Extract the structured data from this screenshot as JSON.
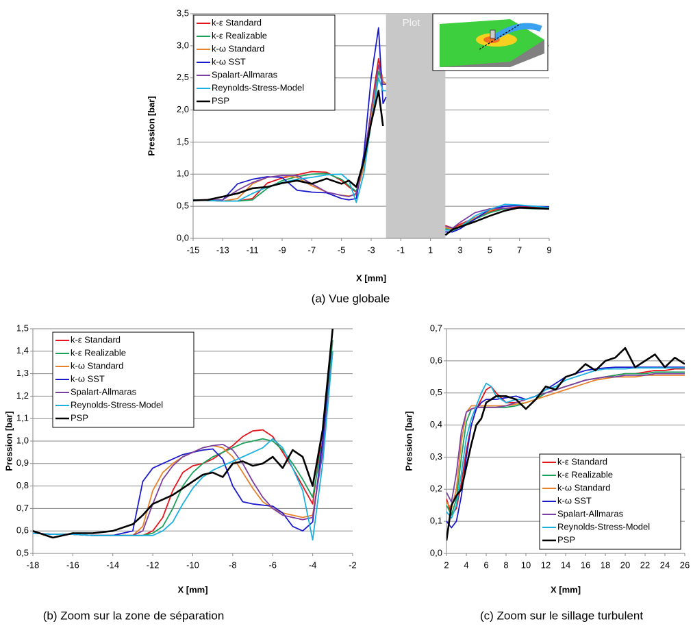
{
  "chart_data": [
    {
      "type": "line",
      "caption": "(a)  Vue globale",
      "xlabel": "X [mm]",
      "ylabel": "Pression [bar]",
      "annotation": "Plot",
      "span": [
        -2,
        2
      ],
      "legend": "upper left",
      "grid": true,
      "xlim": [
        -15,
        9
      ],
      "xticks": [
        -15,
        -13,
        -11,
        -9,
        -7,
        -5,
        -3,
        -1,
        1,
        3,
        5,
        7,
        9
      ],
      "ylim": [
        0,
        3.5
      ],
      "yticks": [
        {
          "value": 0,
          "label": "0,0"
        },
        {
          "value": 0.5,
          "label": "0,5"
        },
        {
          "value": 1,
          "label": "1,0"
        },
        {
          "value": 1.5,
          "label": "1,5"
        },
        {
          "value": 2,
          "label": "2,0"
        },
        {
          "value": 2.5,
          "label": "2,5"
        },
        {
          "value": 3,
          "label": "3,0"
        },
        {
          "value": 3.5,
          "label": "3,5"
        }
      ],
      "x": [
        -15,
        -14,
        -13,
        -12,
        -11,
        -10,
        -9,
        -8,
        -7,
        -6,
        -5,
        -4.5,
        -4,
        -3.5,
        -3,
        -2.5,
        -2.2,
        -2,
        0,
        2,
        2.5,
        3,
        4,
        5,
        6,
        7,
        8,
        9
      ],
      "series": [
        {
          "name": "k-ε Standard",
          "color": "#e3141b",
          "values": [
            0.6,
            0.59,
            0.58,
            0.58,
            0.62,
            0.86,
            0.94,
            0.99,
            1.04,
            1.03,
            0.9,
            0.8,
            0.72,
            1.2,
            2.0,
            2.8,
            2.45,
            2.4,
            null,
            0.2,
            0.16,
            0.22,
            0.32,
            0.42,
            0.47,
            0.49,
            0.49,
            0.49
          ]
        },
        {
          "name": "k-ε Realizable",
          "color": "#1aa05a",
          "values": [
            0.6,
            0.59,
            0.58,
            0.58,
            0.6,
            0.78,
            0.9,
            0.96,
            1.0,
            1.01,
            0.92,
            0.82,
            0.73,
            1.15,
            1.9,
            2.6,
            2.4,
            2.4,
            null,
            0.15,
            0.12,
            0.18,
            0.3,
            0.4,
            0.46,
            0.47,
            0.46,
            0.46
          ]
        },
        {
          "name": "k-ω Standard",
          "color": "#e8822a",
          "values": [
            0.6,
            0.59,
            0.58,
            0.62,
            0.85,
            0.95,
            0.98,
            0.95,
            0.82,
            0.72,
            0.67,
            0.66,
            0.68,
            1.1,
            1.9,
            2.7,
            2.45,
            2.4,
            null,
            0.17,
            0.14,
            0.2,
            0.32,
            0.43,
            0.5,
            0.51,
            0.5,
            0.49
          ]
        },
        {
          "name": "k-ω SST",
          "color": "#1a1acc",
          "values": [
            0.6,
            0.59,
            0.6,
            0.85,
            0.92,
            0.96,
            0.95,
            0.75,
            0.72,
            0.71,
            0.62,
            0.6,
            0.62,
            1.3,
            2.5,
            3.28,
            2.1,
            2.2,
            null,
            0.1,
            0.1,
            0.15,
            0.3,
            0.45,
            0.5,
            0.51,
            0.5,
            0.49
          ]
        },
        {
          "name": "Spalart-Allmaras",
          "color": "#7a3fa0",
          "values": [
            0.6,
            0.59,
            0.6,
            0.75,
            0.87,
            0.95,
            0.98,
            0.98,
            0.85,
            0.72,
            0.67,
            0.65,
            0.7,
            1.2,
            2.0,
            2.7,
            2.4,
            2.4,
            null,
            0.19,
            0.16,
            0.25,
            0.4,
            0.46,
            0.47,
            0.47,
            0.47,
            0.47
          ]
        },
        {
          "name": "Reynolds-Stress-Model",
          "color": "#1ab0e0",
          "values": [
            0.6,
            0.59,
            0.58,
            0.58,
            0.7,
            0.8,
            0.87,
            0.92,
            0.95,
            0.99,
            1.0,
            0.9,
            0.56,
            1.0,
            1.8,
            2.5,
            2.3,
            2.3,
            null,
            0.13,
            0.13,
            0.18,
            0.35,
            0.45,
            0.53,
            0.52,
            0.5,
            0.48
          ]
        },
        {
          "name": "PSP",
          "color": "#000000",
          "values": [
            0.59,
            0.6,
            0.65,
            0.7,
            0.78,
            0.8,
            0.86,
            0.9,
            0.85,
            0.93,
            0.85,
            0.9,
            0.8,
            1.2,
            1.8,
            2.3,
            1.75,
            null,
            null,
            0.05,
            0.14,
            0.18,
            0.26,
            0.35,
            0.43,
            0.48,
            0.47,
            0.46
          ]
        }
      ]
    },
    {
      "type": "line",
      "caption": "(b)  Zoom sur la zone de séparation",
      "xlabel": "X [mm]",
      "ylabel": "Pression [bar]",
      "legend": "upper left",
      "grid": true,
      "xlim": [
        -18,
        -2
      ],
      "xticks": [
        -18,
        -16,
        -14,
        -12,
        -10,
        -8,
        -6,
        -4,
        -2
      ],
      "ylim": [
        0.5,
        1.5
      ],
      "yticks": [
        {
          "value": 0.5,
          "label": "0,5"
        },
        {
          "value": 0.6,
          "label": "0,6"
        },
        {
          "value": 0.7,
          "label": "0,7"
        },
        {
          "value": 0.8,
          "label": "0,8"
        },
        {
          "value": 0.9,
          "label": "0,9"
        },
        {
          "value": 1.0,
          "label": "1,0"
        },
        {
          "value": 1.1,
          "label": "1,1"
        },
        {
          "value": 1.2,
          "label": "1,2"
        },
        {
          "value": 1.3,
          "label": "1,3"
        },
        {
          "value": 1.4,
          "label": "1,4"
        },
        {
          "value": 1.5,
          "label": "1,5"
        }
      ],
      "x": [
        -18,
        -17,
        -16,
        -15,
        -14,
        -13,
        -12.5,
        -12,
        -11.5,
        -11,
        -10.5,
        -10,
        -9.5,
        -9,
        -8.5,
        -8,
        -7.5,
        -7,
        -6.5,
        -6,
        -5.5,
        -5,
        -4.5,
        -4,
        -3.5,
        -3
      ],
      "series": [
        {
          "name": "k-ε Standard",
          "color": "#e3141b",
          "values": [
            0.59,
            0.585,
            0.585,
            0.58,
            0.58,
            0.58,
            0.58,
            0.6,
            0.66,
            0.78,
            0.86,
            0.89,
            0.9,
            0.92,
            0.95,
            0.98,
            1.02,
            1.045,
            1.05,
            1.02,
            0.95,
            0.88,
            0.8,
            0.72,
            1.05,
            1.5
          ]
        },
        {
          "name": "k-ε Realizable",
          "color": "#1aa05a",
          "values": [
            0.59,
            0.585,
            0.585,
            0.58,
            0.58,
            0.58,
            0.58,
            0.59,
            0.62,
            0.7,
            0.8,
            0.86,
            0.9,
            0.93,
            0.95,
            0.97,
            0.99,
            1.0,
            1.01,
            1.0,
            0.96,
            0.9,
            0.83,
            0.75,
            1.0,
            1.45
          ]
        },
        {
          "name": "k-ω Standard",
          "color": "#e8822a",
          "values": [
            0.59,
            0.585,
            0.585,
            0.58,
            0.58,
            0.58,
            0.62,
            0.78,
            0.86,
            0.9,
            0.93,
            0.95,
            0.97,
            0.98,
            0.97,
            0.93,
            0.86,
            0.79,
            0.73,
            0.7,
            0.68,
            0.67,
            0.66,
            0.67,
            0.95,
            1.4
          ]
        },
        {
          "name": "k-ω SST",
          "color": "#1a1acc",
          "values": [
            0.59,
            0.585,
            0.585,
            0.58,
            0.58,
            0.6,
            0.82,
            0.88,
            0.9,
            0.92,
            0.94,
            0.95,
            0.96,
            0.965,
            0.92,
            0.8,
            0.73,
            0.72,
            0.715,
            0.71,
            0.68,
            0.62,
            0.6,
            0.64,
            1.0,
            1.5
          ]
        },
        {
          "name": "Spalart-Allmaras",
          "color": "#7a3fa0",
          "values": [
            0.59,
            0.585,
            0.585,
            0.58,
            0.58,
            0.58,
            0.6,
            0.72,
            0.83,
            0.89,
            0.93,
            0.95,
            0.97,
            0.98,
            0.985,
            0.96,
            0.9,
            0.82,
            0.75,
            0.7,
            0.67,
            0.66,
            0.65,
            0.66,
            0.95,
            1.4
          ]
        },
        {
          "name": "Reynolds-Stress-Model",
          "color": "#1ab0e0",
          "values": [
            0.59,
            0.585,
            0.585,
            0.58,
            0.58,
            0.58,
            0.58,
            0.58,
            0.6,
            0.64,
            0.72,
            0.79,
            0.84,
            0.87,
            0.89,
            0.91,
            0.93,
            0.95,
            0.97,
            1.01,
            0.97,
            0.88,
            0.78,
            0.56,
            0.9,
            1.4
          ]
        },
        {
          "name": "PSP",
          "color": "#000000",
          "values": [
            0.6,
            0.57,
            0.59,
            0.59,
            0.6,
            0.63,
            0.67,
            0.72,
            0.74,
            0.76,
            0.79,
            0.82,
            0.85,
            0.86,
            0.84,
            0.9,
            0.91,
            0.89,
            0.9,
            0.93,
            0.88,
            0.96,
            0.93,
            0.8,
            1.05,
            1.5
          ]
        }
      ]
    },
    {
      "type": "line",
      "caption": "(c)  Zoom sur le sillage turbulent",
      "xlabel": "X [mm]",
      "ylabel": "Pression [bar]",
      "legend": "lower right",
      "grid": true,
      "xlim": [
        2,
        26
      ],
      "xticks": [
        2,
        4,
        6,
        8,
        10,
        12,
        14,
        16,
        18,
        20,
        22,
        24,
        26
      ],
      "ylim": [
        0,
        0.7
      ],
      "yticks": [
        {
          "value": 0,
          "label": "0,0"
        },
        {
          "value": 0.1,
          "label": "0,1"
        },
        {
          "value": 0.2,
          "label": "0,2"
        },
        {
          "value": 0.3,
          "label": "0,3"
        },
        {
          "value": 0.4,
          "label": "0,4"
        },
        {
          "value": 0.5,
          "label": "0,5"
        },
        {
          "value": 0.6,
          "label": "0,6"
        },
        {
          "value": 0.7,
          "label": "0,7"
        }
      ],
      "x": [
        2,
        2.5,
        3,
        3.5,
        4,
        4.5,
        5,
        5.5,
        6,
        6.5,
        7,
        8,
        9,
        10,
        11,
        12,
        13,
        14,
        15,
        16,
        17,
        18,
        19,
        20,
        21,
        22,
        23,
        24,
        25,
        26
      ],
      "series": [
        {
          "name": "k-ε Standard",
          "color": "#e3141b",
          "values": [
            0.17,
            0.12,
            0.14,
            0.22,
            0.32,
            0.4,
            0.45,
            0.48,
            0.51,
            0.52,
            0.5,
            0.47,
            0.47,
            0.48,
            0.49,
            0.5,
            0.51,
            0.52,
            0.53,
            0.54,
            0.545,
            0.55,
            0.555,
            0.56,
            0.56,
            0.565,
            0.57,
            0.57,
            0.575,
            0.575
          ]
        },
        {
          "name": "k-ε Realizable",
          "color": "#1aa05a",
          "values": [
            0.15,
            0.12,
            0.17,
            0.3,
            0.41,
            0.45,
            0.455,
            0.455,
            0.455,
            0.455,
            0.455,
            0.455,
            0.46,
            0.47,
            0.48,
            0.5,
            0.51,
            0.52,
            0.53,
            0.54,
            0.545,
            0.55,
            0.555,
            0.56,
            0.56,
            0.56,
            0.565,
            0.565,
            0.565,
            0.565
          ]
        },
        {
          "name": "k-ω Standard",
          "color": "#e8822a",
          "values": [
            0.16,
            0.14,
            0.2,
            0.35,
            0.44,
            0.46,
            0.46,
            0.46,
            0.46,
            0.46,
            0.46,
            0.46,
            0.465,
            0.47,
            0.48,
            0.49,
            0.5,
            0.51,
            0.52,
            0.53,
            0.54,
            0.545,
            0.55,
            0.55,
            0.55,
            0.555,
            0.555,
            0.555,
            0.555,
            0.555
          ]
        },
        {
          "name": "k-ω SST",
          "color": "#1a1acc",
          "values": [
            0.1,
            0.08,
            0.1,
            0.18,
            0.3,
            0.4,
            0.45,
            0.47,
            0.48,
            0.48,
            0.48,
            0.485,
            0.49,
            0.48,
            0.49,
            0.51,
            0.53,
            0.55,
            0.56,
            0.57,
            0.575,
            0.578,
            0.58,
            0.58,
            0.58,
            0.58,
            0.58,
            0.58,
            0.58,
            0.58
          ]
        },
        {
          "name": "Spalart-Allmaras",
          "color": "#7a3fa0",
          "values": [
            0.19,
            0.16,
            0.25,
            0.38,
            0.44,
            0.45,
            0.455,
            0.455,
            0.455,
            0.455,
            0.455,
            0.46,
            0.47,
            0.48,
            0.49,
            0.5,
            0.51,
            0.52,
            0.53,
            0.54,
            0.545,
            0.55,
            0.55,
            0.555,
            0.555,
            0.555,
            0.56,
            0.56,
            0.56,
            0.56
          ]
        },
        {
          "name": "Reynolds-Stress-Model",
          "color": "#1ab0e0",
          "values": [
            0.13,
            0.11,
            0.15,
            0.25,
            0.36,
            0.42,
            0.46,
            0.5,
            0.53,
            0.52,
            0.49,
            0.47,
            0.48,
            0.48,
            0.49,
            0.51,
            0.52,
            0.54,
            0.55,
            0.56,
            0.57,
            0.575,
            0.575,
            0.575,
            0.578,
            0.578,
            0.578,
            0.578,
            0.578,
            0.578
          ]
        },
        {
          "name": "PSP",
          "color": "#000000",
          "values": [
            0.04,
            0.15,
            0.18,
            0.2,
            0.27,
            0.34,
            0.4,
            0.42,
            0.47,
            0.48,
            0.49,
            0.49,
            0.48,
            0.45,
            0.48,
            0.52,
            0.51,
            0.55,
            0.56,
            0.59,
            0.57,
            0.6,
            0.61,
            0.64,
            0.58,
            0.6,
            0.62,
            0.58,
            0.61,
            0.59
          ]
        }
      ]
    }
  ]
}
